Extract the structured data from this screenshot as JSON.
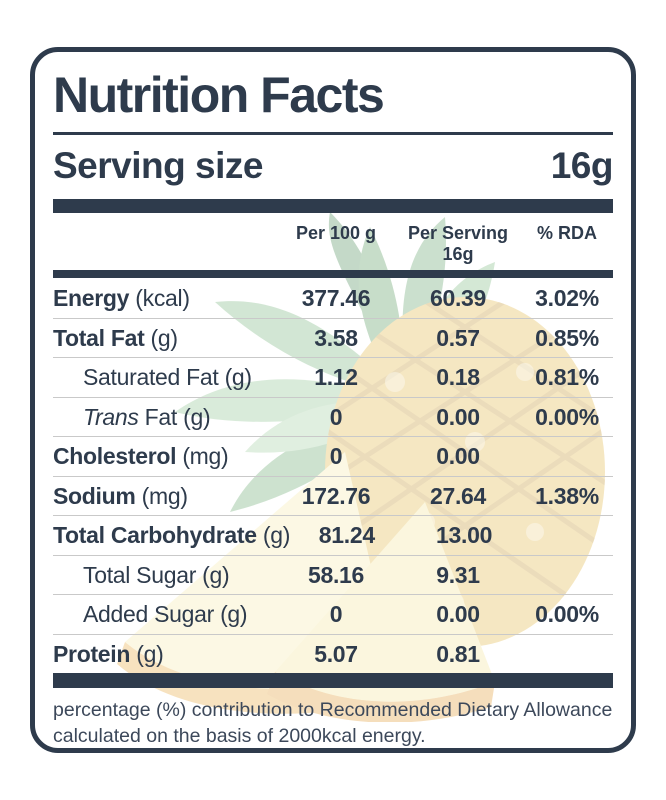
{
  "label": {
    "title": "Nutrition Facts",
    "serving": {
      "label": "Serving size",
      "value": "16g"
    },
    "columns": {
      "per100": "Per 100 g",
      "perServing": "Per Serving",
      "perServingSub": "16g",
      "rda": "% RDA"
    },
    "rows": [
      {
        "prefix_italic": "",
        "name": "Energy",
        "unit": "(kcal)",
        "bold": true,
        "indent": false,
        "per100": "377.46",
        "perServing": "60.39",
        "rda": "3.02%"
      },
      {
        "prefix_italic": "",
        "name": "Total Fat",
        "unit": "(g)",
        "bold": true,
        "indent": false,
        "per100": "3.58",
        "perServing": "0.57",
        "rda": "0.85%"
      },
      {
        "prefix_italic": "",
        "name": "Saturated Fat",
        "unit": "(g)",
        "bold": false,
        "indent": true,
        "per100": "1.12",
        "perServing": "0.18",
        "rda": "0.81%"
      },
      {
        "prefix_italic": "Trans",
        "name": " Fat",
        "unit": "(g)",
        "bold": false,
        "indent": true,
        "per100": "0",
        "perServing": "0.00",
        "rda": "0.00%"
      },
      {
        "prefix_italic": "",
        "name": "Cholesterol",
        "unit": "(mg)",
        "bold": true,
        "indent": false,
        "per100": "0",
        "perServing": "0.00",
        "rda": ""
      },
      {
        "prefix_italic": "",
        "name": "Sodium",
        "unit": "(mg)",
        "bold": true,
        "indent": false,
        "per100": "172.76",
        "perServing": "27.64",
        "rda": "1.38%"
      },
      {
        "prefix_italic": "",
        "name": "Total Carbohydrate",
        "unit": "(g)",
        "bold": true,
        "indent": false,
        "per100": "81.24",
        "perServing": "13.00",
        "rda": ""
      },
      {
        "prefix_italic": "",
        "name": "Total Sugar",
        "unit": "(g)",
        "bold": false,
        "indent": true,
        "per100": "58.16",
        "perServing": "9.31",
        "rda": ""
      },
      {
        "prefix_italic": "",
        "name": "Added Sugar",
        "unit": "(g)",
        "bold": false,
        "indent": true,
        "per100": "0",
        "perServing": "0.00",
        "rda": "0.00%"
      },
      {
        "prefix_italic": "",
        "name": "Protein",
        "unit": "(g)",
        "bold": true,
        "indent": false,
        "per100": "5.07",
        "perServing": "0.81",
        "rda": ""
      }
    ],
    "footnote": "percentage (%) contribution to Recommended Dietary Allowance calculated on the basis of 2000kcal energy.",
    "colors": {
      "primary": "#2e3b4c",
      "separator": "#c9c9c9"
    },
    "background_image": "pineapple-watermark"
  }
}
